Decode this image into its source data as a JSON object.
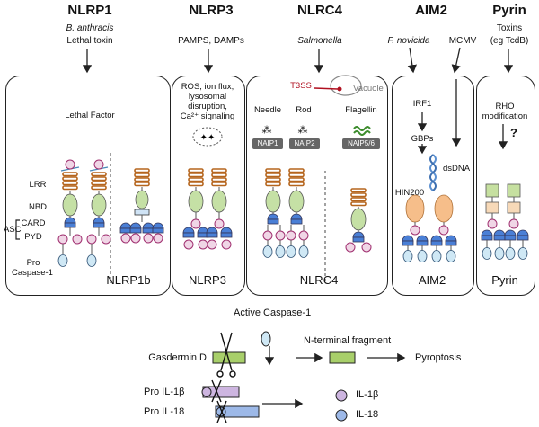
{
  "columns": [
    {
      "title": "NLRP1",
      "subtitle_line1": "B. anthracis",
      "subtitle_line2": "Lethal toxin"
    },
    {
      "title": "NLRP3",
      "subtitle_line1": "PAMPS, DAMPs",
      "subtitle_line2": ""
    },
    {
      "title": "NLRC4",
      "subtitle_line1": "Salmonella",
      "subtitle_line2": ""
    },
    {
      "title": "AIM2",
      "subtitle_line1": "F. novicida",
      "subtitle_line2": "MCMV"
    },
    {
      "title": "Pyrin",
      "subtitle_line1": "Toxins",
      "subtitle_line2": "(eg TcdB)"
    }
  ],
  "nlrp1": {
    "stimulus": "Lethal Factor",
    "domains": {
      "lrr": "LRR",
      "nbd": "NBD",
      "asc": "ASC",
      "card": "CARD",
      "pyd": "PYD",
      "pro_caspase_line1": "Pro",
      "pro_caspase_line2": "Caspase-1"
    },
    "name": "NLRP1b"
  },
  "nlrp3": {
    "stimulus_lines": [
      "ROS, ion flux,",
      "lysosomal",
      "disruption,",
      "Ca²⁺ signaling"
    ],
    "name": "NLRP3"
  },
  "nlrc4": {
    "t3ss": "T3SS",
    "vacuole": "Vacuole",
    "ligands": [
      "Needle",
      "Rod",
      "Flagellin"
    ],
    "naips": [
      "NAIP1",
      "NAIP2",
      "NAIP5/6"
    ],
    "name": "NLRC4"
  },
  "aim2": {
    "irf1": "IRF1",
    "gbps": "GBPs",
    "dsdna": "dsDNA",
    "hin200": "HIN200",
    "name": "AIM2"
  },
  "pyrin": {
    "rho_line1": "RHO",
    "rho_line2": "modification",
    "unknown": "?",
    "name": "Pyrin"
  },
  "bottom": {
    "active_caspase": "Active Caspase-1",
    "gasdermin": "Gasdermin D",
    "n_terminal": "N-terminal fragment",
    "pyroptosis": "Pyroptosis",
    "pro_il1b": "Pro IL-1β",
    "pro_il18": "Pro IL-18",
    "il1b": "IL-1β",
    "il18": "IL-18"
  },
  "colors": {
    "lrr": "#b5651d",
    "nbd": "#c5e0a5",
    "card": "#4a7fd6",
    "pyd": "#f0d6e6",
    "caspase": "#cfe8f5",
    "hin200": "#f6be8a",
    "gasdermin": "#a8cf6a",
    "il1b": "#cdb5e0",
    "il18": "#9db9e8"
  }
}
